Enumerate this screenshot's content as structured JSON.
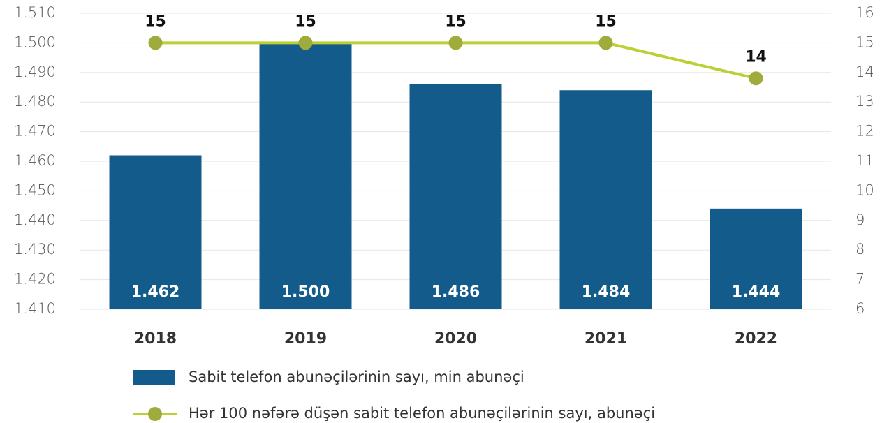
{
  "chart_data": {
    "type": "bar_line",
    "categories": [
      "2018",
      "2019",
      "2020",
      "2021",
      "2022"
    ],
    "series": [
      {
        "name": "Sabit telefon abunəçilərinin sayı, min abunəçi",
        "type": "bar",
        "color": "#135b8a",
        "values": [
          1462,
          1500,
          1486,
          1484,
          1444
        ],
        "value_labels": [
          "1.462",
          "1.500",
          "1.486",
          "1.484",
          "1.444"
        ]
      },
      {
        "name": "Hər 100 nəfərə düşən sabit telefon abunəçilərinin sayı, abunəçi",
        "type": "line",
        "axis": "y2",
        "color": "#bccf33",
        "marker_color": "#9fab3a",
        "values": [
          15,
          15,
          15,
          15,
          13.8
        ],
        "value_labels": [
          "15",
          "15",
          "15",
          "15",
          "14"
        ]
      }
    ],
    "ylim": [
      1410,
      1510
    ],
    "yticks": [
      {
        "value": 1410,
        "label": "1.410"
      },
      {
        "value": 1420,
        "label": "1.420"
      },
      {
        "value": 1430,
        "label": "1.430"
      },
      {
        "value": 1440,
        "label": "1.440"
      },
      {
        "value": 1450,
        "label": "1.450"
      },
      {
        "value": 1460,
        "label": "1.460"
      },
      {
        "value": 1470,
        "label": "1.470"
      },
      {
        "value": 1480,
        "label": "1.480"
      },
      {
        "value": 1490,
        "label": "1.490"
      },
      {
        "value": 1500,
        "label": "1.500"
      },
      {
        "value": 1510,
        "label": "1.510"
      }
    ],
    "y2lim": [
      6,
      16
    ],
    "y2ticks": [
      6,
      7,
      8,
      9,
      10,
      11,
      12,
      13,
      14,
      15,
      16
    ],
    "grid": true
  }
}
